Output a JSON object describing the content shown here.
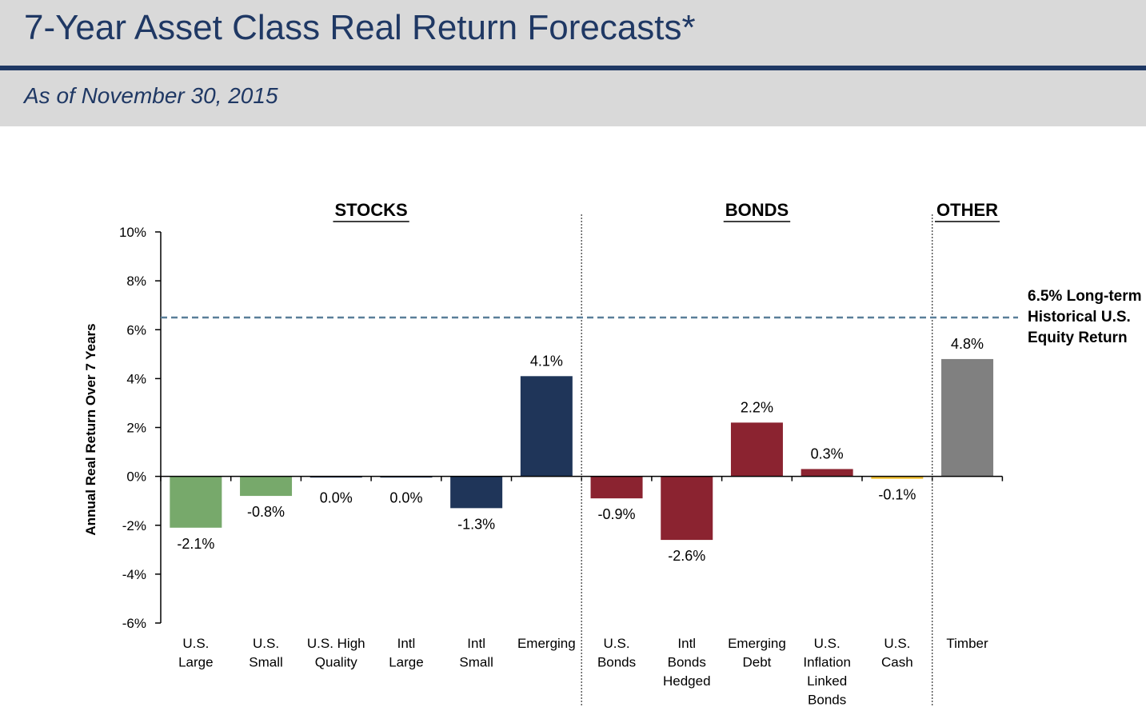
{
  "header": {
    "title": "7-Year Asset Class Real Return Forecasts*",
    "subtitle": "As of  November 30, 2015"
  },
  "chart_data": {
    "type": "bar",
    "ylabel": "Annual Real Return Over 7 Years",
    "ylim": [
      -6,
      10
    ],
    "yticks": [
      "10%",
      "8%",
      "6%",
      "4%",
      "2%",
      "0%",
      "-2%",
      "-4%",
      "-6%"
    ],
    "groups": [
      {
        "label": "STOCKS",
        "start": 0,
        "end": 5
      },
      {
        "label": "BONDS",
        "start": 6,
        "end": 10
      },
      {
        "label": "OTHER",
        "start": 11,
        "end": 11
      }
    ],
    "categories": [
      [
        "U.S.",
        "Large"
      ],
      [
        "U.S.",
        "Small"
      ],
      [
        "U.S. High",
        "Quality"
      ],
      [
        "Intl",
        "Large"
      ],
      [
        "Intl",
        "Small"
      ],
      [
        "Emerging"
      ],
      [
        "U.S.",
        "Bonds"
      ],
      [
        "Intl",
        "Bonds",
        "Hedged"
      ],
      [
        "Emerging",
        "Debt"
      ],
      [
        "U.S.",
        "Inflation",
        "Linked",
        "Bonds"
      ],
      [
        "U.S.",
        "Cash"
      ],
      [
        "Timber"
      ]
    ],
    "values": [
      -2.1,
      -0.8,
      0.0,
      0.0,
      -1.3,
      4.1,
      -0.9,
      -2.6,
      2.2,
      0.3,
      -0.1,
      4.8
    ],
    "value_labels": [
      "-2.1%",
      "-0.8%",
      "0.0%",
      "0.0%",
      "-1.3%",
      "4.1%",
      "-0.9%",
      "-2.6%",
      "2.2%",
      "0.3%",
      "-0.1%",
      "4.8%"
    ],
    "bar_colors": [
      "#77a96b",
      "#77a96b",
      "#1f3559",
      "#1f3559",
      "#1f3559",
      "#1f3559",
      "#8b2330",
      "#8b2330",
      "#8b2330",
      "#8b2330",
      "#f2c12e",
      "#808080"
    ],
    "reference_line": {
      "value": 6.5,
      "label": [
        "6.5% Long-term",
        "Historical U.S.",
        "Equity Return"
      ],
      "color": "#5a7f99"
    },
    "legend": "none",
    "grid": false
  }
}
